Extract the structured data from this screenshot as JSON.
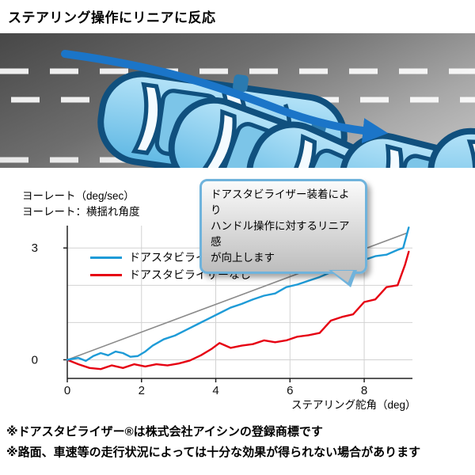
{
  "title": "ステアリング操作にリニアに反応",
  "road_illustration": {
    "car_body_color": "#8FD2F0",
    "car_outline_color": "#10507E",
    "arrow_color": "#1B75C8",
    "lane_line_color": "#FFFFFF"
  },
  "callout": {
    "line1": "ドアスタビライザー装着により",
    "line2": "ハンドル操作に対するリニア感",
    "line3": "が向上します",
    "border_color": "#6FB3DC"
  },
  "chart_data": {
    "type": "line",
    "xlabel": "ステアリング舵角（deg）",
    "ylabel": "ヨーレート（deg/sec）",
    "ylabel_note": "ヨーレート：横揺れ角度",
    "xlim": [
      0,
      9.3
    ],
    "ylim": [
      -0.5,
      3.6
    ],
    "xticks": [
      0,
      2,
      4,
      6,
      8
    ],
    "yticks": [
      0,
      3
    ],
    "ygrid": [
      0,
      1,
      2,
      3
    ],
    "grid": true,
    "legend_position": "upper-left",
    "series": [
      {
        "id": "reference",
        "label": null,
        "color": "#8A8A8A",
        "points": [
          [
            0,
            0
          ],
          [
            9.15,
            3.4
          ]
        ]
      },
      {
        "id": "with_stabilizer",
        "label": "ドアスタビライザーあり",
        "color": "#1E9BD7",
        "points": [
          [
            0,
            0
          ],
          [
            0.3,
            0.05
          ],
          [
            0.5,
            -0.03
          ],
          [
            0.7,
            0.1
          ],
          [
            0.9,
            0.18
          ],
          [
            1.1,
            0.12
          ],
          [
            1.3,
            0.22
          ],
          [
            1.5,
            0.18
          ],
          [
            1.7,
            0.08
          ],
          [
            1.9,
            0.1
          ],
          [
            2.1,
            0.22
          ],
          [
            2.3,
            0.38
          ],
          [
            2.6,
            0.55
          ],
          [
            2.9,
            0.65
          ],
          [
            3.2,
            0.8
          ],
          [
            3.5,
            0.95
          ],
          [
            3.8,
            1.1
          ],
          [
            4.1,
            1.25
          ],
          [
            4.4,
            1.4
          ],
          [
            4.7,
            1.5
          ],
          [
            5.0,
            1.62
          ],
          [
            5.3,
            1.72
          ],
          [
            5.6,
            1.78
          ],
          [
            5.9,
            1.95
          ],
          [
            6.2,
            2.02
          ],
          [
            6.5,
            2.12
          ],
          [
            6.8,
            2.22
          ],
          [
            7.1,
            2.35
          ],
          [
            7.4,
            2.6
          ],
          [
            7.7,
            2.62
          ],
          [
            8.0,
            2.68
          ],
          [
            8.3,
            2.78
          ],
          [
            8.6,
            2.82
          ],
          [
            8.9,
            2.95
          ],
          [
            9.05,
            3.0
          ],
          [
            9.2,
            3.55
          ]
        ]
      },
      {
        "id": "without_stabilizer",
        "label": "ドアスタビライザーなし",
        "color": "#E60012",
        "points": [
          [
            0,
            0
          ],
          [
            0.3,
            -0.12
          ],
          [
            0.6,
            -0.22
          ],
          [
            0.9,
            -0.25
          ],
          [
            1.2,
            -0.15
          ],
          [
            1.5,
            -0.22
          ],
          [
            1.8,
            -0.12
          ],
          [
            2.1,
            -0.18
          ],
          [
            2.4,
            -0.12
          ],
          [
            2.7,
            -0.15
          ],
          [
            3.0,
            -0.1
          ],
          [
            3.3,
            -0.02
          ],
          [
            3.6,
            0.12
          ],
          [
            3.9,
            0.3
          ],
          [
            4.1,
            0.45
          ],
          [
            4.4,
            0.32
          ],
          [
            4.7,
            0.38
          ],
          [
            5.0,
            0.42
          ],
          [
            5.3,
            0.52
          ],
          [
            5.6,
            0.47
          ],
          [
            5.9,
            0.52
          ],
          [
            6.2,
            0.62
          ],
          [
            6.5,
            0.66
          ],
          [
            6.8,
            0.72
          ],
          [
            7.1,
            1.05
          ],
          [
            7.4,
            1.15
          ],
          [
            7.7,
            1.22
          ],
          [
            8.0,
            1.55
          ],
          [
            8.3,
            1.62
          ],
          [
            8.6,
            1.95
          ],
          [
            8.9,
            2.0
          ],
          [
            9.1,
            2.55
          ],
          [
            9.2,
            2.9
          ]
        ]
      }
    ]
  },
  "footnotes": [
    "※ドアスタビライザー®は株式会社アイシンの登録商標です",
    "※路面、車速等の走行状況によっては十分な効果が得られない場合があります"
  ]
}
